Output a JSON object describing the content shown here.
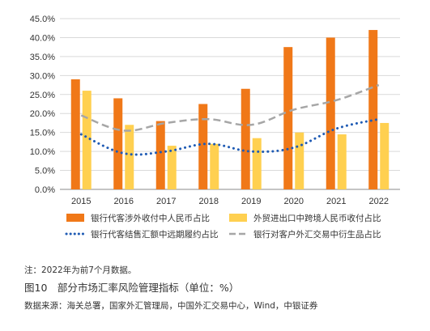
{
  "chart_data": {
    "type": "bar",
    "categories": [
      "2015",
      "2016",
      "2017",
      "2018",
      "2019",
      "2020",
      "2021",
      "2022"
    ],
    "ylim": [
      0,
      45
    ],
    "yticks": [
      "0.0%",
      "5.0%",
      "10.0%",
      "15.0%",
      "20.0%",
      "25.0%",
      "30.0%",
      "35.0%",
      "40.0%",
      "45.0%"
    ],
    "series": [
      {
        "name": "银行代客涉外收付中人民币占比",
        "kind": "bar",
        "color": "#F07818",
        "values": [
          29.0,
          24.0,
          18.0,
          22.5,
          26.5,
          37.5,
          40.0,
          42.0
        ]
      },
      {
        "name": "外贸进出口中跨境人民币收付占比",
        "kind": "bar",
        "color": "#FFD050",
        "values": [
          26.0,
          17.0,
          11.5,
          12.0,
          13.5,
          15.0,
          14.5,
          17.5
        ]
      },
      {
        "name": "银行代客结售汇额中远期履约占比",
        "kind": "line",
        "style": "dotted",
        "color": "#1F5BB4",
        "values": [
          14.5,
          9.5,
          10.0,
          12.0,
          10.0,
          11.0,
          16.0,
          18.5
        ]
      },
      {
        "name": "银行对客户外汇交易中衍生品占比",
        "kind": "line",
        "style": "dashed",
        "color": "#A6A6A6",
        "values": [
          19.5,
          15.5,
          17.5,
          18.5,
          17.0,
          21.0,
          23.5,
          27.5
        ]
      }
    ],
    "grid": true,
    "legend_position": "bottom"
  },
  "note": "注：2022年为前7个月数据。",
  "figure_title": "图10　部分市场汇率风险管理指标（单位：%）",
  "source": "数据来源：海关总署，国家外汇管理局，中国外汇交易中心，Wind，中银证券"
}
